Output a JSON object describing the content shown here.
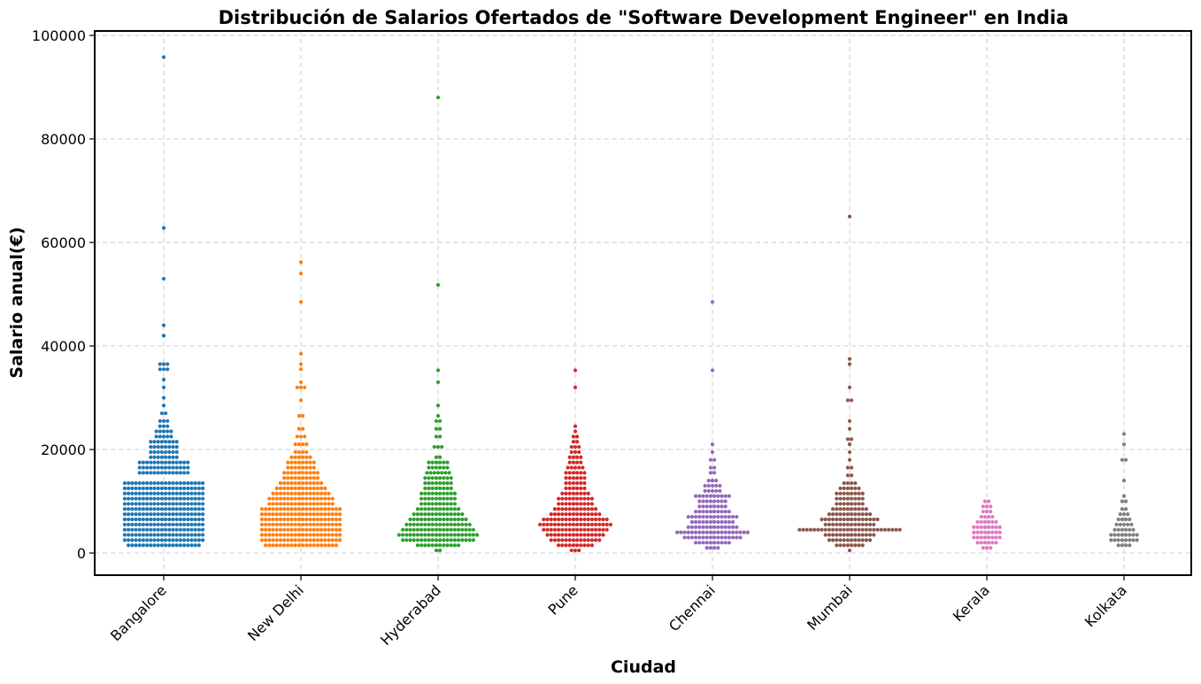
{
  "chart_data": {
    "type": "scatter",
    "subtype": "swarm",
    "title": "Distribución de Salarios Ofertados de \"Software Development Engineer\" en India",
    "xlabel": "Ciudad",
    "ylabel": "Salario anual(€)",
    "ylim": [
      -4000,
      101000
    ],
    "yticks": [
      0,
      20000,
      40000,
      60000,
      80000,
      100000
    ],
    "grid": true,
    "legend": "none",
    "categories": [
      "Bangalore",
      "New Delhi",
      "Hyderabad",
      "Pune",
      "Chennai",
      "Mumbai",
      "Kerala",
      "Kolkata"
    ],
    "colors": [
      "#1f77b4",
      "#ff7f0e",
      "#2ca02c",
      "#d62728",
      "#9467bd",
      "#8c564b",
      "#e377c2",
      "#7f7f7f"
    ],
    "series": [
      {
        "category": "Bangalore",
        "bins": [
          [
            1500,
            20
          ],
          [
            2500,
            22
          ],
          [
            3500,
            22
          ],
          [
            4500,
            22
          ],
          [
            5500,
            22
          ],
          [
            6500,
            22
          ],
          [
            7500,
            22
          ],
          [
            8500,
            22
          ],
          [
            9500,
            22
          ],
          [
            10500,
            22
          ],
          [
            11500,
            22
          ],
          [
            12500,
            22
          ],
          [
            13500,
            22
          ],
          [
            15500,
            14
          ],
          [
            16500,
            14
          ],
          [
            17500,
            14
          ],
          [
            18500,
            8
          ],
          [
            19500,
            8
          ],
          [
            20500,
            8
          ],
          [
            21500,
            8
          ],
          [
            22500,
            5
          ],
          [
            23500,
            5
          ],
          [
            24500,
            3
          ],
          [
            25500,
            3
          ],
          [
            27000,
            2
          ],
          [
            28500,
            1
          ],
          [
            30000,
            1
          ],
          [
            32000,
            1
          ],
          [
            33500,
            1
          ],
          [
            35500,
            3
          ],
          [
            36500,
            3
          ]
        ],
        "outliers": [
          42000,
          42000,
          44000,
          53000,
          62800,
          95800
        ]
      },
      {
        "category": "New Delhi",
        "bins": [
          [
            1500,
            20
          ],
          [
            2500,
            22
          ],
          [
            3500,
            22
          ],
          [
            4500,
            22
          ],
          [
            5500,
            22
          ],
          [
            6500,
            22
          ],
          [
            7500,
            22
          ],
          [
            8500,
            22
          ],
          [
            9500,
            18
          ],
          [
            10500,
            18
          ],
          [
            11500,
            16
          ],
          [
            12500,
            14
          ],
          [
            13500,
            12
          ],
          [
            14500,
            10
          ],
          [
            15500,
            10
          ],
          [
            16500,
            8
          ],
          [
            17500,
            8
          ],
          [
            18500,
            6
          ],
          [
            19500,
            4
          ],
          [
            21000,
            4
          ],
          [
            22500,
            3
          ],
          [
            24000,
            2
          ],
          [
            26500,
            2
          ],
          [
            29500,
            1
          ],
          [
            32000,
            3
          ],
          [
            33000,
            1
          ],
          [
            35500,
            1
          ],
          [
            36500,
            1
          ],
          [
            38500,
            1
          ]
        ],
        "outliers": [
          48500,
          54000,
          56200
        ]
      },
      {
        "category": "Hyderabad",
        "bins": [
          [
            500,
            2
          ],
          [
            1500,
            12
          ],
          [
            2500,
            20
          ],
          [
            3500,
            22
          ],
          [
            4500,
            20
          ],
          [
            5500,
            18
          ],
          [
            6500,
            16
          ],
          [
            7500,
            14
          ],
          [
            8500,
            12
          ],
          [
            9500,
            10
          ],
          [
            10500,
            10
          ],
          [
            11500,
            10
          ],
          [
            12500,
            8
          ],
          [
            13500,
            8
          ],
          [
            14500,
            8
          ],
          [
            15500,
            7
          ],
          [
            16500,
            6
          ],
          [
            17500,
            6
          ],
          [
            18500,
            2
          ],
          [
            20500,
            3
          ],
          [
            22500,
            2
          ],
          [
            24000,
            2
          ],
          [
            25500,
            2
          ],
          [
            26500,
            1
          ],
          [
            28500,
            1
          ],
          [
            33000,
            1
          ],
          [
            35300,
            1
          ]
        ],
        "outliers": [
          51800,
          88000
        ]
      },
      {
        "category": "Pune",
        "bins": [
          [
            500,
            3
          ],
          [
            1500,
            10
          ],
          [
            2500,
            14
          ],
          [
            3500,
            16
          ],
          [
            4500,
            18
          ],
          [
            5500,
            20
          ],
          [
            6500,
            18
          ],
          [
            7500,
            14
          ],
          [
            8500,
            12
          ],
          [
            9500,
            10
          ],
          [
            10500,
            10
          ],
          [
            11500,
            8
          ],
          [
            12500,
            6
          ],
          [
            13500,
            6
          ],
          [
            14500,
            6
          ],
          [
            15500,
            6
          ],
          [
            16500,
            5
          ],
          [
            17500,
            4
          ],
          [
            18500,
            4
          ],
          [
            19500,
            3
          ],
          [
            20500,
            3
          ],
          [
            21500,
            2
          ],
          [
            22500,
            2
          ],
          [
            23500,
            1
          ],
          [
            24500,
            1
          ]
        ],
        "outliers": [
          32000,
          35300
        ]
      },
      {
        "category": "Chennai",
        "bins": [
          [
            1000,
            4
          ],
          [
            2000,
            10
          ],
          [
            3000,
            16
          ],
          [
            4000,
            20
          ],
          [
            5000,
            14
          ],
          [
            6000,
            12
          ],
          [
            7000,
            14
          ],
          [
            8000,
            10
          ],
          [
            9000,
            8
          ],
          [
            10000,
            8
          ],
          [
            11000,
            10
          ],
          [
            12000,
            5
          ],
          [
            13000,
            5
          ],
          [
            14000,
            3
          ],
          [
            15500,
            2
          ],
          [
            16500,
            2
          ],
          [
            18000,
            2
          ],
          [
            19500,
            1
          ],
          [
            21000,
            1
          ]
        ],
        "outliers": [
          35300,
          48500
        ]
      },
      {
        "category": "Mumbai",
        "bins": [
          [
            500,
            1
          ],
          [
            1500,
            8
          ],
          [
            2500,
            12
          ],
          [
            3500,
            14
          ],
          [
            4500,
            28
          ],
          [
            5500,
            14
          ],
          [
            6500,
            16
          ],
          [
            7500,
            12
          ],
          [
            8500,
            10
          ],
          [
            9500,
            8
          ],
          [
            10500,
            8
          ],
          [
            11500,
            8
          ],
          [
            12500,
            6
          ],
          [
            13500,
            4
          ],
          [
            15000,
            2
          ],
          [
            16500,
            2
          ],
          [
            18000,
            1
          ],
          [
            19500,
            1
          ],
          [
            21000,
            1
          ],
          [
            22000,
            2
          ],
          [
            24000,
            1
          ],
          [
            25500,
            1
          ],
          [
            29500,
            2
          ],
          [
            32000,
            1
          ]
        ],
        "outliers": [
          36500,
          37500,
          65000
        ]
      },
      {
        "category": "Kerala",
        "bins": [
          [
            1000,
            3
          ],
          [
            2000,
            6
          ],
          [
            3000,
            8
          ],
          [
            4000,
            8
          ],
          [
            5000,
            8
          ],
          [
            6000,
            6
          ],
          [
            7000,
            4
          ],
          [
            8000,
            3
          ],
          [
            9000,
            3
          ],
          [
            10000,
            2
          ]
        ],
        "outliers": []
      },
      {
        "category": "Kolkata",
        "bins": [
          [
            1500,
            4
          ],
          [
            2500,
            8
          ],
          [
            3500,
            8
          ],
          [
            4500,
            6
          ],
          [
            5500,
            5
          ],
          [
            6500,
            4
          ],
          [
            7500,
            3
          ],
          [
            8500,
            2
          ],
          [
            10000,
            2
          ],
          [
            11000,
            1
          ],
          [
            14000,
            1
          ],
          [
            18000,
            2
          ],
          [
            21000,
            1
          ],
          [
            23000,
            1
          ]
        ],
        "outliers": []
      }
    ]
  }
}
